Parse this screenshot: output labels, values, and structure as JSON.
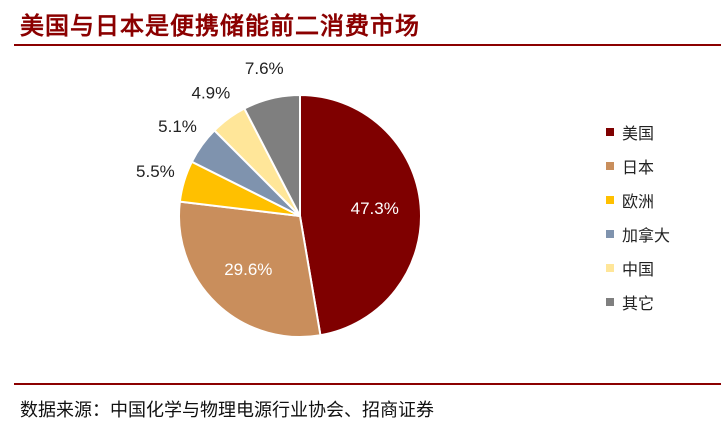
{
  "title": "美国与日本是便携储能前二消费市场",
  "source": "数据来源：中国化学与物理电源行业协会、招商证券",
  "chart_data": {
    "type": "pie",
    "start_angle_deg": 90,
    "direction": "clockwise",
    "legend_position": "right",
    "slices": [
      {
        "label": "美国",
        "value": 47.3,
        "value_label": "47.3%",
        "color": "#7f0000",
        "label_placement": "inside"
      },
      {
        "label": "日本",
        "value": 29.6,
        "value_label": "29.6%",
        "color": "#c98e5c",
        "label_placement": "inside"
      },
      {
        "label": "欧洲",
        "value": 5.5,
        "value_label": "5.5%",
        "color": "#ffc000",
        "label_placement": "outside"
      },
      {
        "label": "加拿大",
        "value": 5.1,
        "value_label": "5.1%",
        "color": "#7f93ae",
        "label_placement": "outside"
      },
      {
        "label": "中国",
        "value": 4.9,
        "value_label": "4.9%",
        "color": "#ffe699",
        "label_placement": "outside"
      },
      {
        "label": "其它",
        "value": 7.6,
        "value_label": "7.6%",
        "color": "#7f7f7f",
        "label_placement": "outside"
      }
    ]
  }
}
